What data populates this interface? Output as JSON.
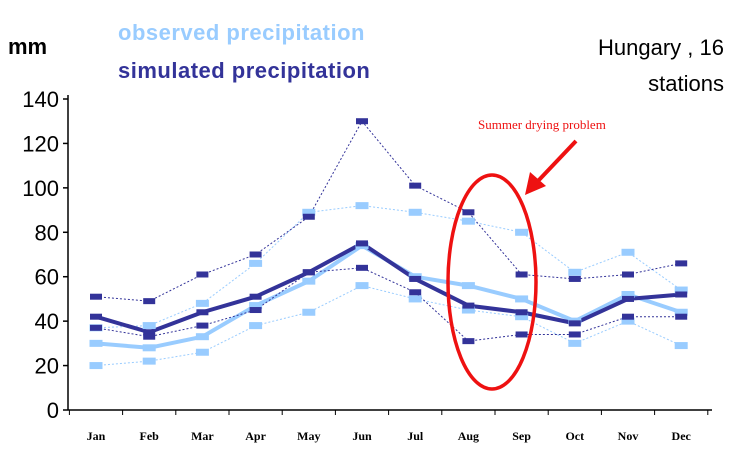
{
  "chart_data": {
    "type": "line",
    "ylabel": "mm",
    "region": [
      "Hungary , 16",
      "stations"
    ],
    "ylim": [
      0,
      140
    ],
    "yticks": [
      0,
      20,
      40,
      60,
      80,
      100,
      120,
      140
    ],
    "categories": [
      "Jan",
      "Feb",
      "Mar",
      "Apr",
      "May",
      "Jun",
      "Jul",
      "Aug",
      "Sep",
      "Oct",
      "Nov",
      "Dec"
    ],
    "legend": [
      "observed precipitation",
      "simulated precipitation"
    ],
    "annotation": "Summer drying problem",
    "series": [
      {
        "name": "observed precipitation",
        "role": "mean",
        "color": "#99ccff",
        "values": [
          30,
          28,
          33,
          47,
          58,
          74,
          60,
          56,
          50,
          40,
          52,
          44
        ]
      },
      {
        "name": "observed precipitation",
        "role": "upper",
        "color": "#99ccff",
        "values": [
          37,
          38,
          48,
          66,
          89,
          92,
          89,
          85,
          80,
          62,
          71,
          54
        ]
      },
      {
        "name": "observed precipitation",
        "role": "lower",
        "color": "#99ccff",
        "values": [
          20,
          22,
          26,
          38,
          44,
          56,
          50,
          45,
          42,
          30,
          40,
          29
        ]
      },
      {
        "name": "simulated precipitation",
        "role": "mean",
        "color": "#333399",
        "values": [
          42,
          35,
          44,
          51,
          62,
          75,
          59,
          47,
          44,
          39,
          50,
          52
        ]
      },
      {
        "name": "simulated precipitation",
        "role": "upper",
        "color": "#333399",
        "values": [
          51,
          49,
          61,
          70,
          87,
          130,
          101,
          89,
          61,
          59,
          61,
          66
        ]
      },
      {
        "name": "simulated precipitation",
        "role": "lower",
        "color": "#333399",
        "values": [
          37,
          33,
          38,
          45,
          62,
          64,
          53,
          31,
          34,
          34,
          42,
          42
        ]
      }
    ]
  }
}
